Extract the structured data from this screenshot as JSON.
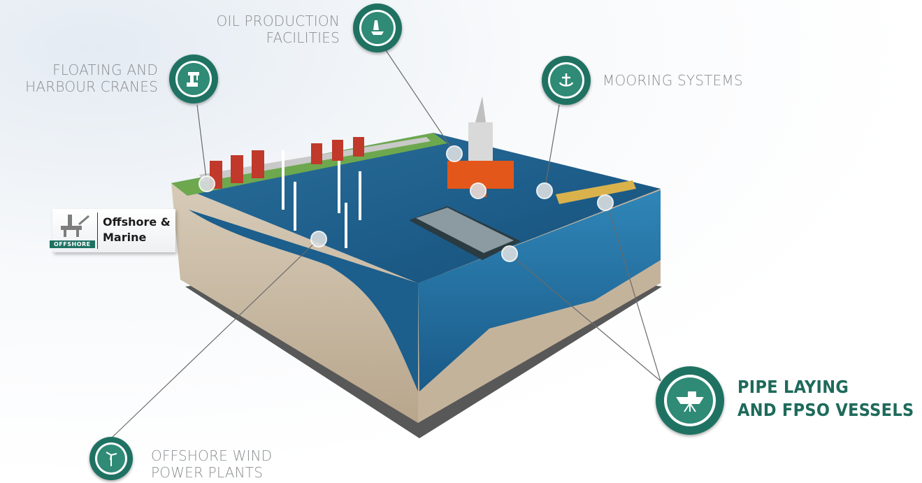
{
  "callouts": {
    "oil_production": {
      "lines": [
        "OIL PRODUCTION",
        "FACILITIES"
      ],
      "icon": "oil-rig-icon"
    },
    "floating_cranes": {
      "lines": [
        "FLOATING AND",
        "HARBOUR CRANES"
      ],
      "icon": "crane-icon"
    },
    "mooring": {
      "lines": [
        "MOORING SYSTEMS"
      ],
      "icon": "anchor-icon"
    },
    "wind": {
      "lines": [
        "OFFSHORE WIND",
        "POWER PLANTS"
      ],
      "icon": "wind-turbine-icon"
    },
    "pipe_laying": {
      "lines": [
        "PIPE LAYING",
        "AND FPSO VESSELS"
      ],
      "icon": "ship-icon"
    }
  },
  "category_tag": {
    "badge": "OFFSHORE",
    "lines": [
      "Offshore &",
      "Marine"
    ],
    "icon": "offshore-platform-icon"
  },
  "colors": {
    "accent": "#1f7262",
    "label_gray": "#8a8d90",
    "sea": "#1d5f8a",
    "soil": "#c9b9a3"
  }
}
